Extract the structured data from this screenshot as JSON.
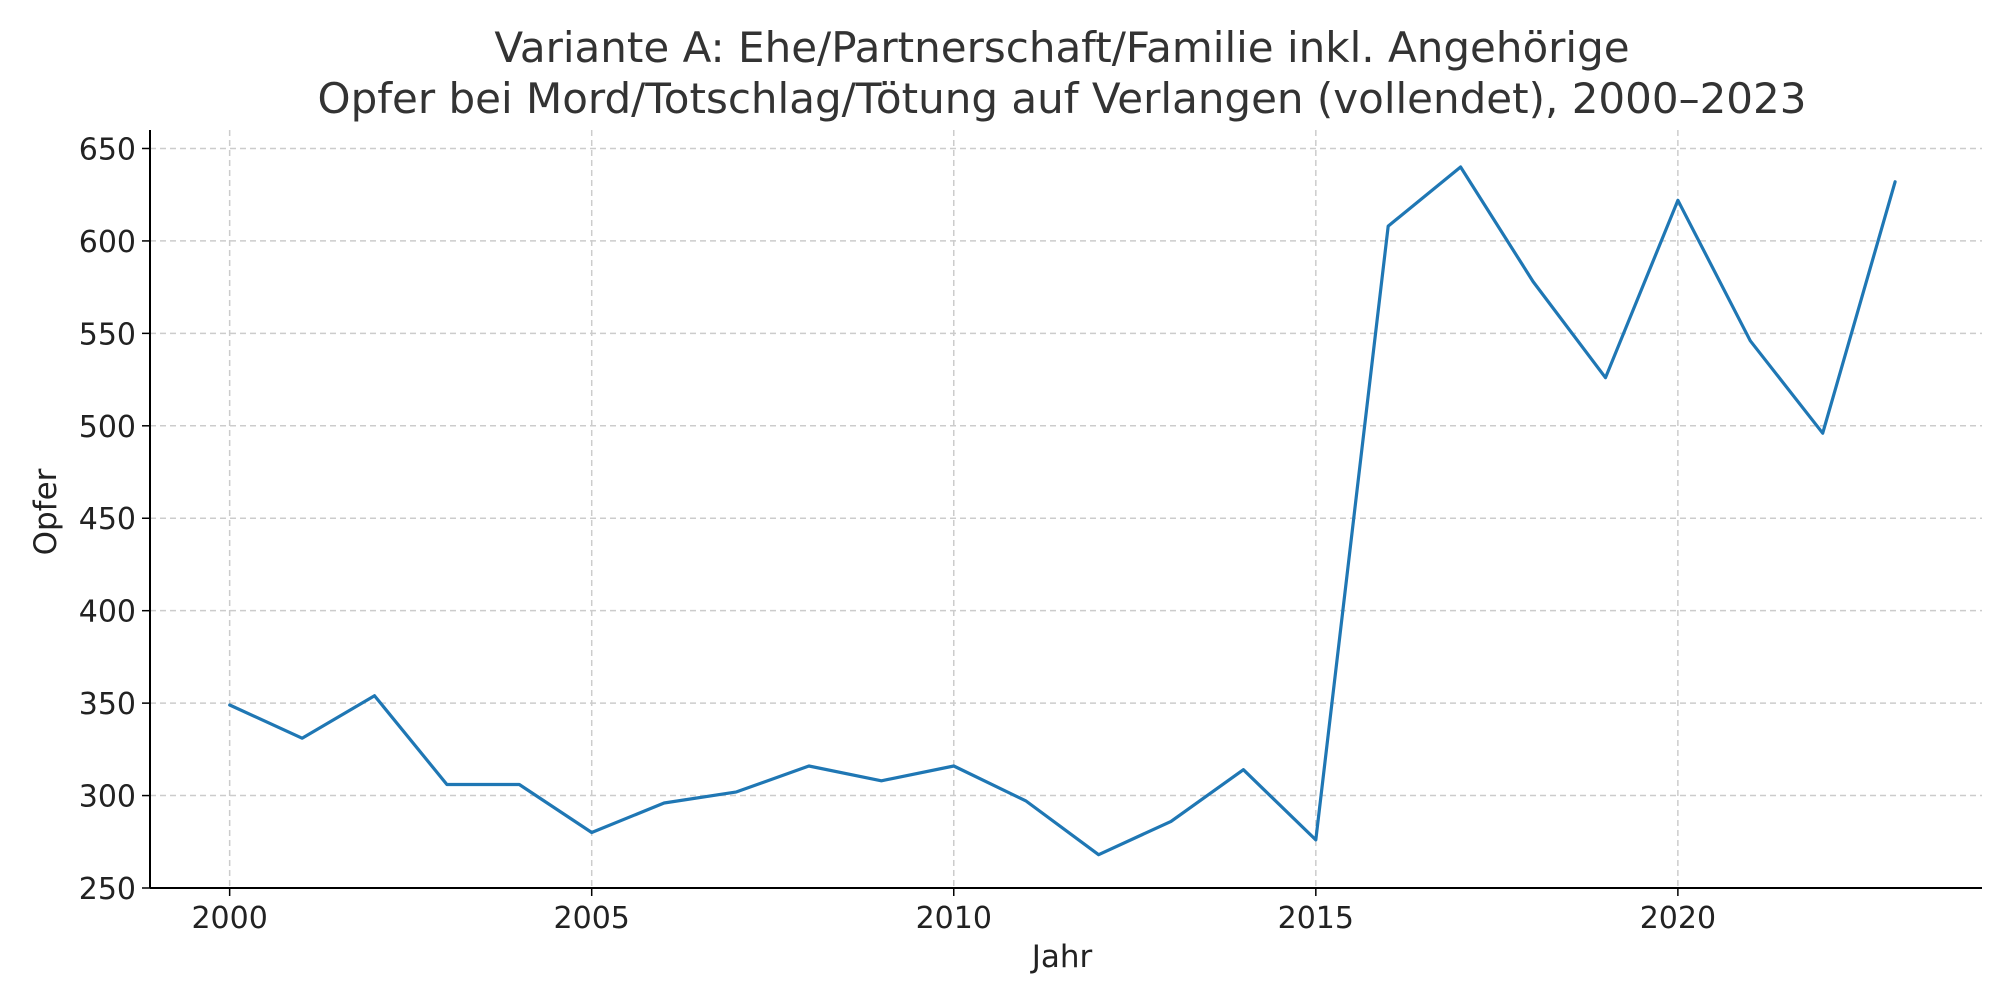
{
  "chart_data": {
    "type": "line",
    "title_line1": "Variante A: Ehe/Partnerschaft/Familie inkl. Angehörige",
    "title_line2": "Opfer bei Mord/Totschlag/Tötung auf Verlangen (vollendet), 2000–2023",
    "xlabel": "Jahr",
    "ylabel": "Opfer",
    "xlim": [
      1998.9,
      2024.2
    ],
    "ylim": [
      250,
      660
    ],
    "xticks": [
      2000,
      2005,
      2010,
      2015,
      2020
    ],
    "yticks": [
      250,
      300,
      350,
      400,
      450,
      500,
      550,
      600,
      650
    ],
    "grid": true,
    "color": "#1f77b4",
    "series": [
      {
        "x": [
          2000,
          2001,
          2002,
          2003,
          2004,
          2005,
          2006,
          2007,
          2008,
          2009,
          2010,
          2011,
          2012,
          2013,
          2014,
          2015,
          2016,
          2017,
          2018,
          2019,
          2020,
          2021,
          2022,
          2023
        ],
        "values": [
          349,
          331,
          354,
          306,
          306,
          280,
          296,
          302,
          316,
          308,
          316,
          297,
          268,
          286,
          314,
          276,
          608,
          640,
          578,
          526,
          622,
          546,
          496,
          632
        ]
      }
    ]
  }
}
